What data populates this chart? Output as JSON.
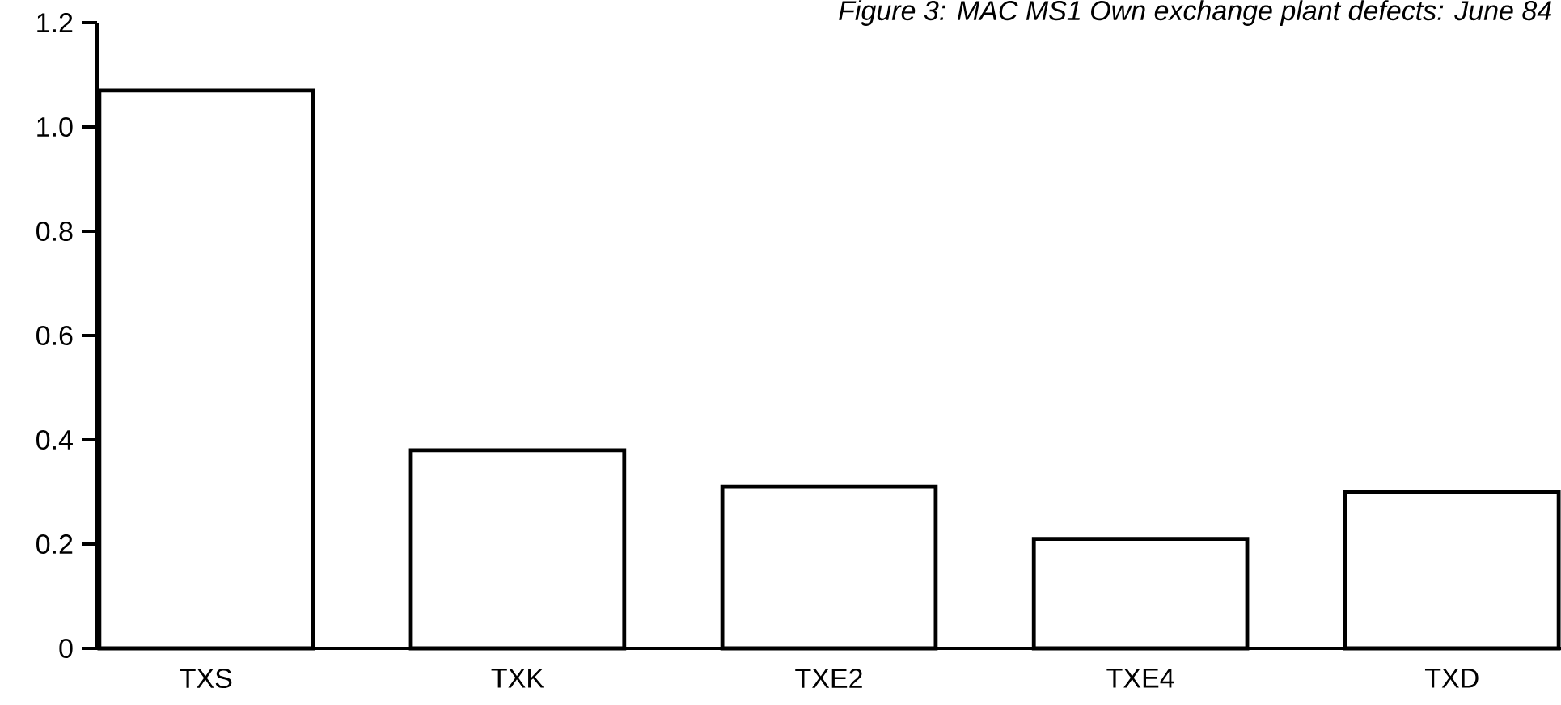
{
  "chart_data": {
    "type": "bar",
    "title": "Figure 3: MAC MS1 Own exchange plant defects: June 84",
    "categories": [
      "TXS",
      "TXK",
      "TXE2",
      "TXE4",
      "TXD"
    ],
    "values": [
      1.07,
      0.38,
      0.31,
      0.21,
      0.3
    ],
    "color": "#ffffff",
    "ylim": [
      0,
      1.2
    ],
    "yticks": [
      0,
      0.2,
      0.4,
      0.6,
      0.8,
      {
        "value": 1.0,
        "label": "1.0"
      },
      1.2
    ]
  }
}
